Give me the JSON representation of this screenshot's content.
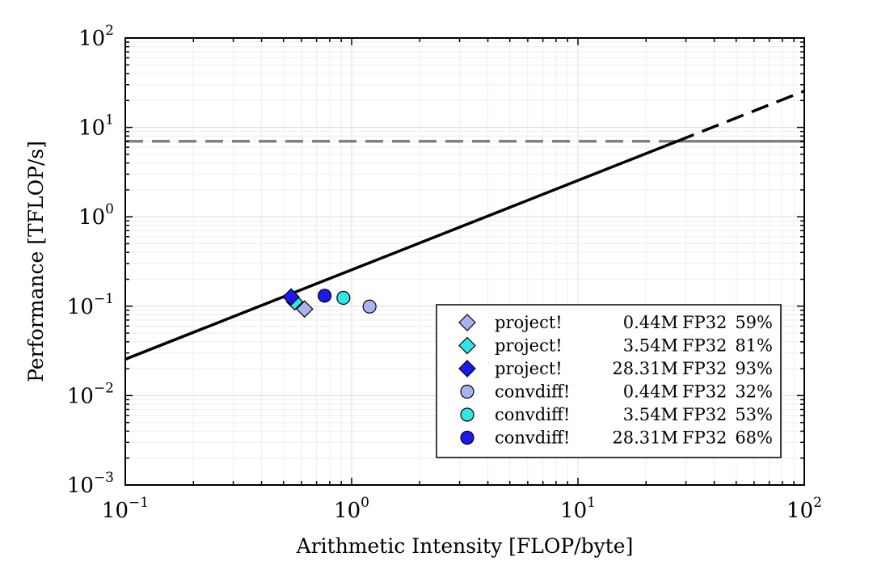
{
  "chart_data": {
    "type": "scatter",
    "title": "",
    "xlabel": "Arithmetic Intensity [FLOP/byte]",
    "ylabel": "Performance [TFLOP/s]",
    "xscale": "log",
    "yscale": "log",
    "xlim": [
      0.1,
      100
    ],
    "ylim": [
      0.001,
      100
    ],
    "x_ticks": [
      {
        "base": "10",
        "exp": "−1"
      },
      {
        "base": "10",
        "exp": "0"
      },
      {
        "base": "10",
        "exp": "1"
      },
      {
        "base": "10",
        "exp": "2"
      }
    ],
    "y_ticks": [
      {
        "base": "10",
        "exp": "−3"
      },
      {
        "base": "10",
        "exp": "−2"
      },
      {
        "base": "10",
        "exp": "−1"
      },
      {
        "base": "10",
        "exp": "0"
      },
      {
        "base": "10",
        "exp": "1"
      },
      {
        "base": "10",
        "exp": "2"
      }
    ],
    "grid": true,
    "legend_position": "bottom-right",
    "roofline": {
      "peak_compute": 7.0,
      "memory_bandwidth": 0.255,
      "peak_color": "#808080",
      "bandwidth_color": "#000000"
    },
    "series": [
      {
        "name": "project!",
        "size": "0.44M",
        "precision": "FP32",
        "efficiency": "59%",
        "x": 0.62,
        "y": 0.093,
        "marker": "diamond",
        "color": "#a7b4f0"
      },
      {
        "name": "project!",
        "size": "3.54M",
        "precision": "FP32",
        "efficiency": "81%",
        "x": 0.56,
        "y": 0.112,
        "marker": "diamond",
        "color": "#33e6e6"
      },
      {
        "name": "project!",
        "size": "28.31M",
        "precision": "FP32",
        "efficiency": "93%",
        "x": 0.54,
        "y": 0.127,
        "marker": "diamond",
        "color": "#1a1aee"
      },
      {
        "name": "convdiff!",
        "size": "0.44M",
        "precision": "FP32",
        "efficiency": "32%",
        "x": 1.2,
        "y": 0.099,
        "marker": "circle",
        "color": "#a7b4f0"
      },
      {
        "name": "convdiff!",
        "size": "3.54M",
        "precision": "FP32",
        "efficiency": "53%",
        "x": 0.92,
        "y": 0.124,
        "marker": "circle",
        "color": "#33e6e6"
      },
      {
        "name": "convdiff!",
        "size": "28.31M",
        "precision": "FP32",
        "efficiency": "68%",
        "x": 0.76,
        "y": 0.131,
        "marker": "circle",
        "color": "#1a1aee"
      }
    ]
  }
}
